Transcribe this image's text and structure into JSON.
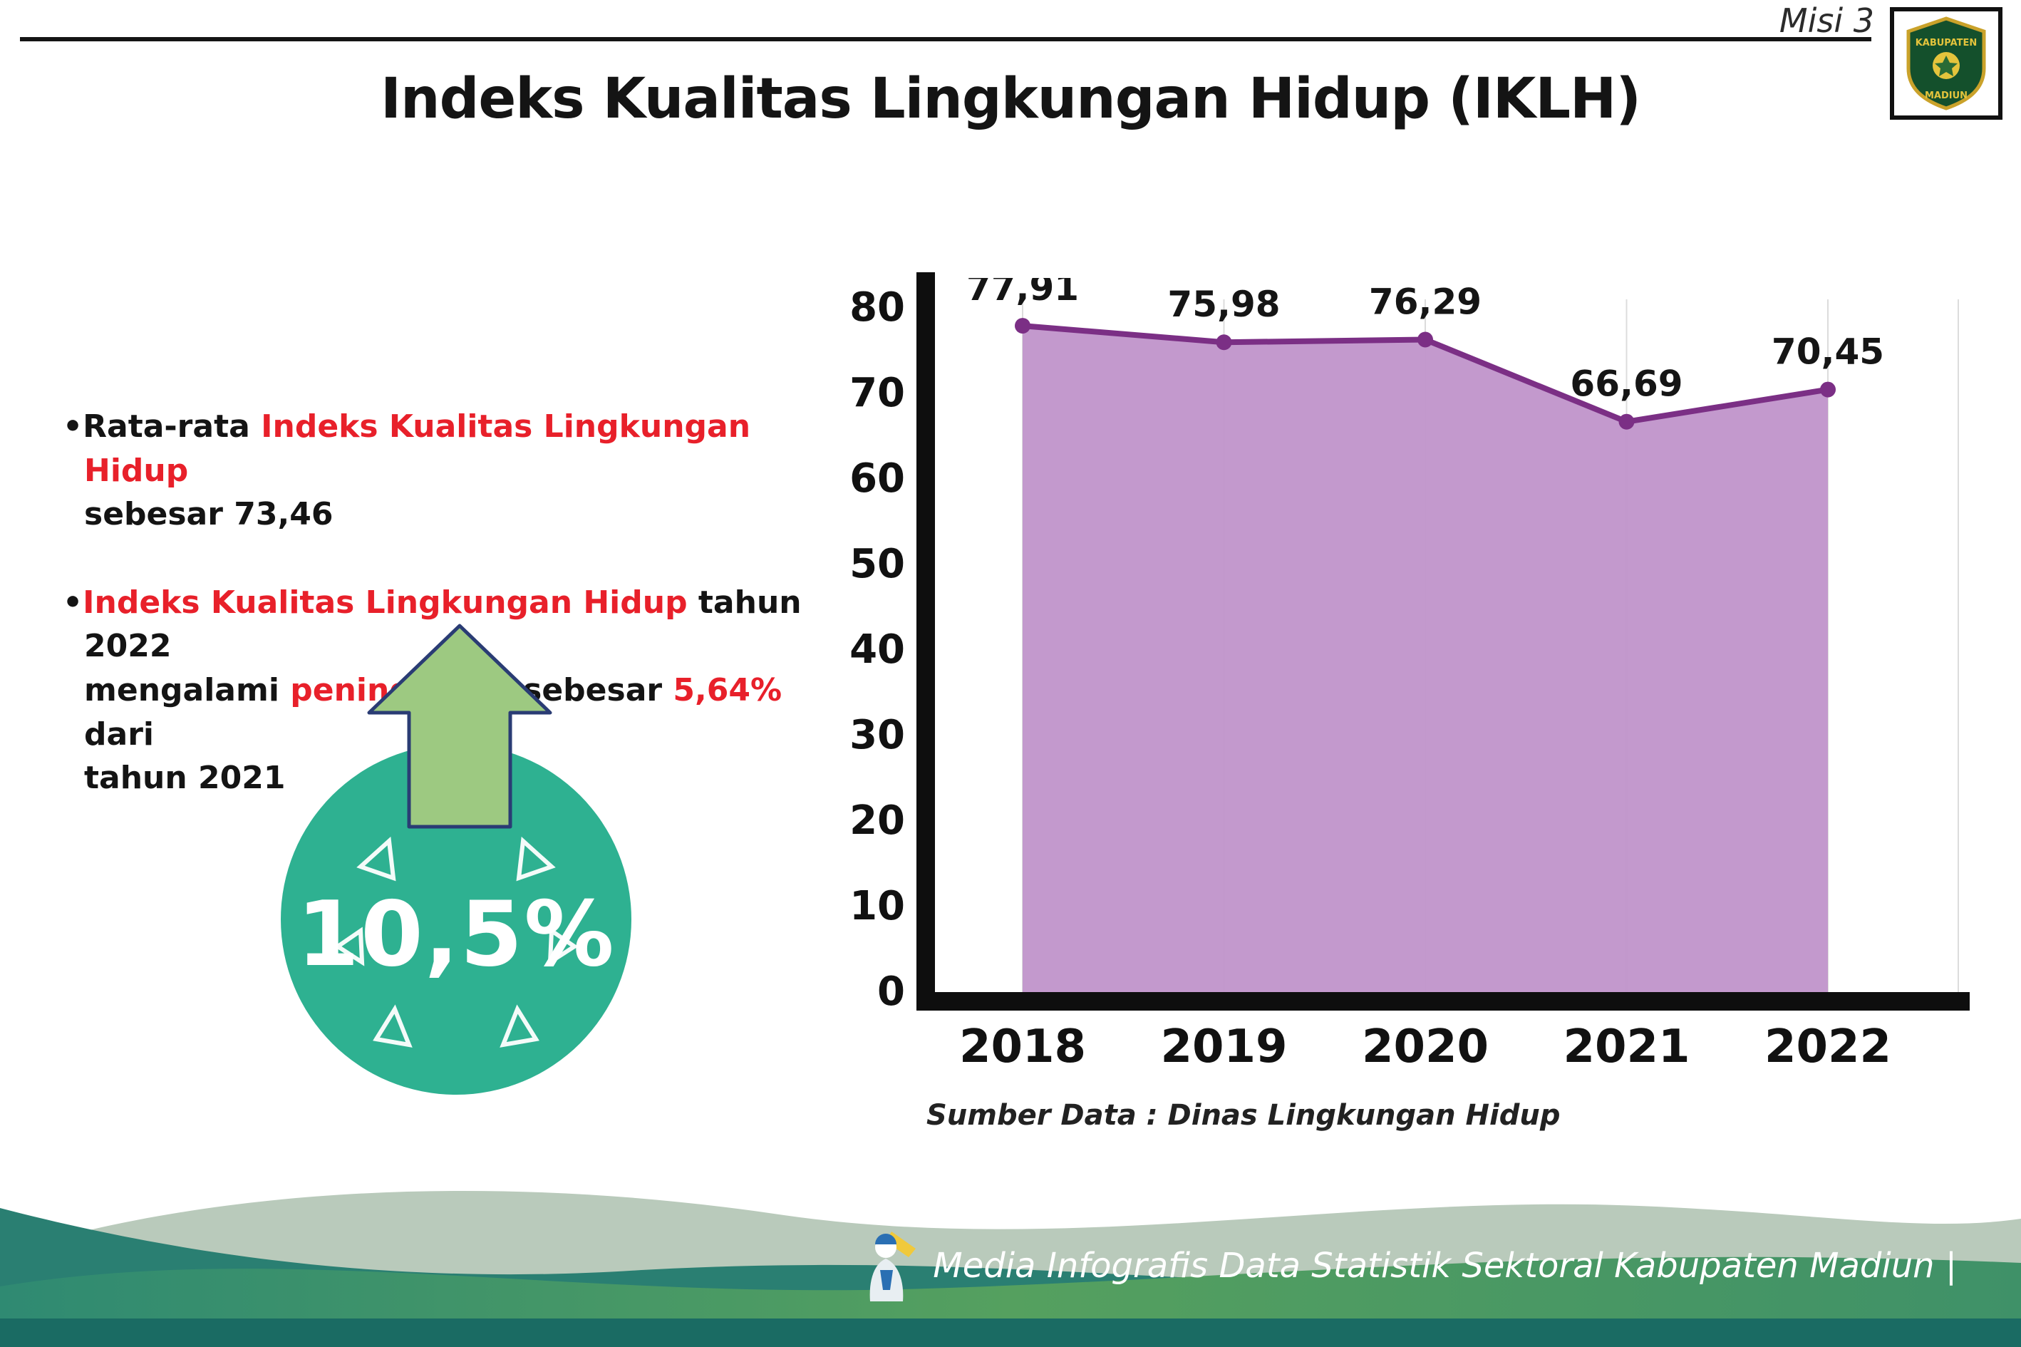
{
  "header": {
    "misi": "Misi 3",
    "title": "Indeks Kualitas Lingkungan Hidup (IKLH)"
  },
  "logo": {
    "top_text": "KABUPATEN",
    "bottom_text": "MADIUN"
  },
  "bullets": {
    "b1_black1": "Rata-rata ",
    "b1_red": "Indeks Kualitas Lingkungan Hidup",
    "b1_black2": "sebesar 73,46",
    "b2_red1": "Indeks Kualitas Lingkungan Hidup",
    "b2_black1": " tahun 2022",
    "b2_black2": "mengalami ",
    "b2_red2": "peningkatan",
    "b2_black3": " sebesar ",
    "b2_red3": "5,64%",
    "b2_black4": " dari",
    "b2_black5": "tahun 2021"
  },
  "badge": {
    "value": "10,5%"
  },
  "chart_data": {
    "type": "area",
    "title": "Indeks Kualitas Lingkungan Hidup (IKLH)",
    "categories": [
      "2018",
      "2019",
      "2020",
      "2021",
      "2022"
    ],
    "values": [
      77.91,
      75.98,
      76.29,
      66.69,
      70.45
    ],
    "value_labels": [
      "77,91",
      "75,98",
      "76,29",
      "66,69",
      "70,45"
    ],
    "xlabel": "",
    "ylabel": "",
    "ylim": [
      0,
      80
    ],
    "ytick_step": 10,
    "grid": "vertical-light",
    "legend": "none",
    "fill_color": "#c094ca",
    "line_color": "#7b2f85",
    "source_note": "Sumber Data : Dinas Lingkungan Hidup"
  },
  "footer": {
    "credit": "Media Infografis Data Statistik Sektoral Kabupaten Madiun |"
  },
  "colors": {
    "accent_red": "#e8202a",
    "circle_teal": "#2eb191",
    "arrow_green": "#9dc981",
    "axis_black": "#0e0e0e"
  }
}
